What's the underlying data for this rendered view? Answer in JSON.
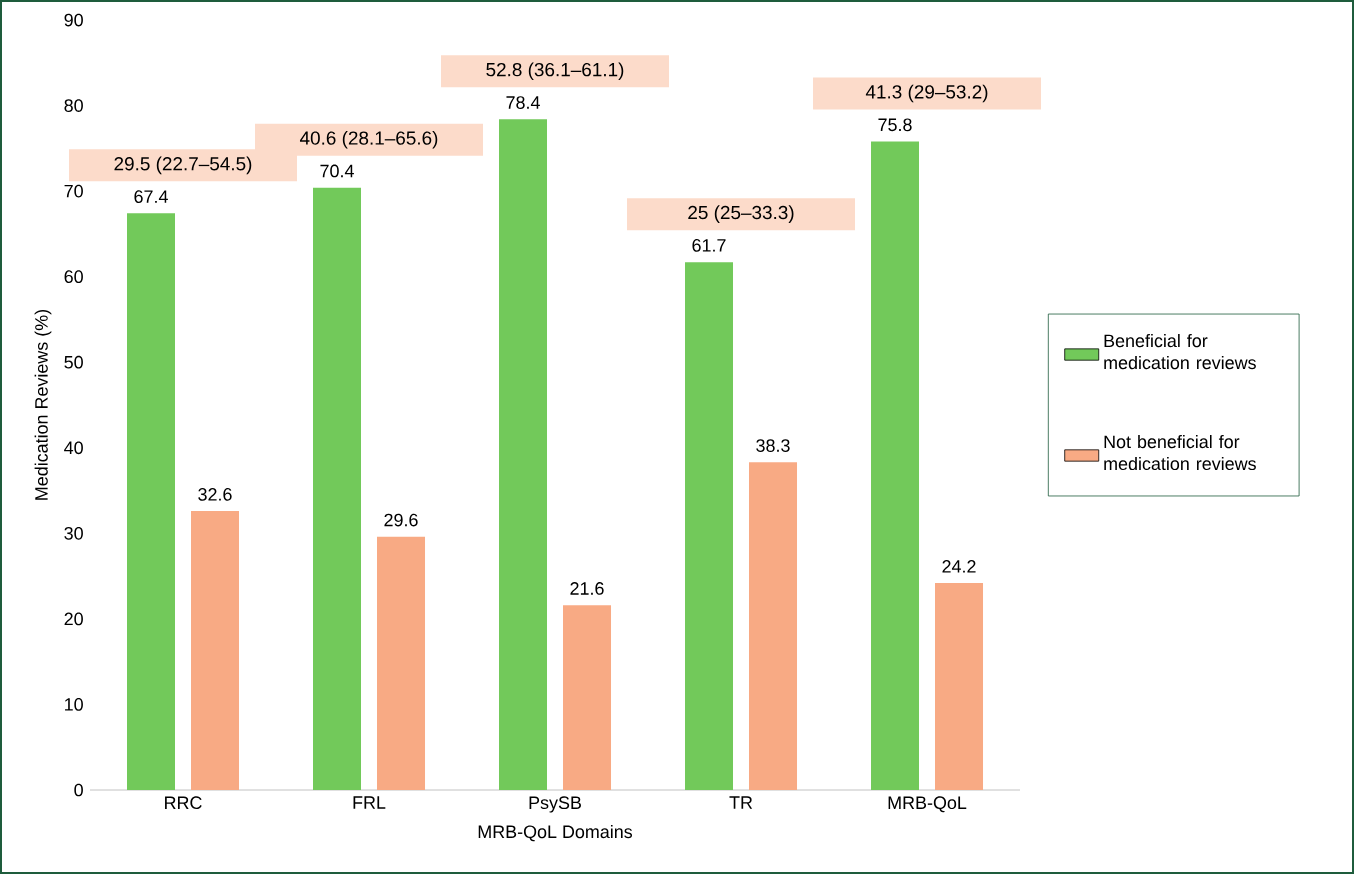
{
  "chart_data": {
    "type": "bar",
    "xlabel": "MRB-QoL Domains",
    "ylabel": "Medication Reviews (%)",
    "categories": [
      "RRC",
      "FRL",
      "PsySB",
      "TR",
      "MRB-QoL"
    ],
    "series": [
      {
        "name": "Beneficial for medication reviews",
        "color": "#72c95a",
        "values": [
          67.4,
          70.4,
          78.4,
          61.7,
          75.8
        ]
      },
      {
        "name": "Not beneficial for medication reviews",
        "color": "#f8aa84",
        "values": [
          32.6,
          29.6,
          21.6,
          38.3,
          24.2
        ]
      }
    ],
    "ylim": [
      0,
      90
    ],
    "yticks": [
      0,
      10,
      20,
      30,
      40,
      50,
      60,
      70,
      80,
      90
    ],
    "data_labels": true,
    "legend": "right",
    "annotations": [
      "29.5 (22.7–54.5)",
      "40.6 (28.1–65.6)",
      "52.8 (36.1–61.1)",
      "25 (25–33.3)",
      "41.3 (29–53.2)"
    ]
  }
}
